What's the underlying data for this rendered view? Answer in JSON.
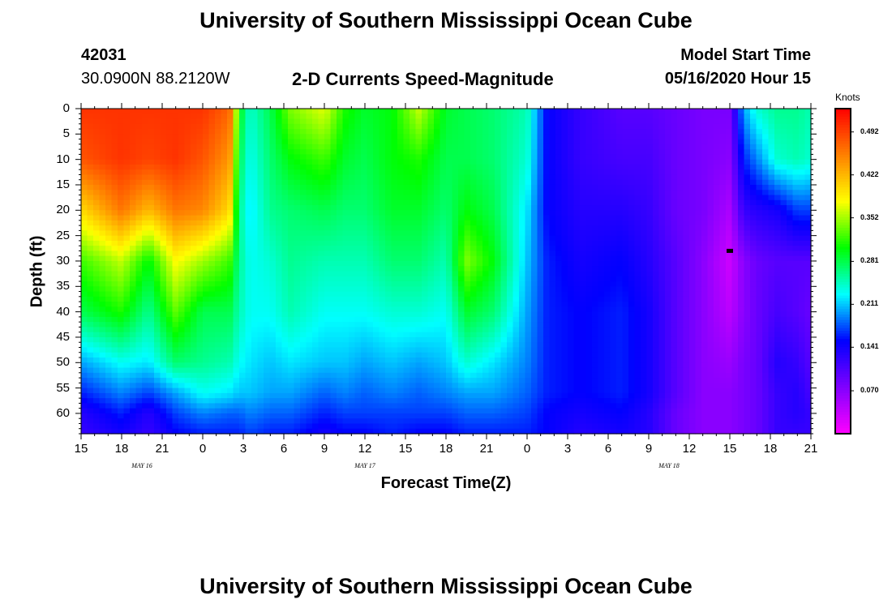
{
  "header": {
    "title": "University of Southern Mississippi Ocean Cube",
    "station_id": "42031",
    "location": "30.0900N 88.2120W",
    "subtitle": "2-D Currents Speed-Magnitude",
    "model_start_label": "Model Start Time",
    "model_start_value": "05/16/2020 Hour 15"
  },
  "footer": {
    "title": "University of Southern Mississippi Ocean Cube"
  },
  "chart_data": {
    "type": "heatmap",
    "title": "2-D Currents Speed-Magnitude",
    "xlabel": "Forecast Time(Z)",
    "ylabel": "Depth (ft)",
    "x_range_hours": [
      0,
      54
    ],
    "y_range_ft": [
      0,
      64
    ],
    "x_tick_labels": [
      "15",
      "18",
      "21",
      "0",
      "3",
      "6",
      "9",
      "12",
      "15",
      "18",
      "21",
      "0",
      "3",
      "6",
      "9",
      "12",
      "15",
      "18",
      "21"
    ],
    "y_tick_labels": [
      "0",
      "5",
      "10",
      "15",
      "20",
      "25",
      "30",
      "35",
      "40",
      "45",
      "50",
      "55",
      "60"
    ],
    "date_labels": [
      {
        "text": "MAY 16",
        "hour": 4.5
      },
      {
        "text": "MAY 17",
        "hour": 21
      },
      {
        "text": "MAY 18",
        "hour": 43.5
      }
    ],
    "colorbar": {
      "unit": "Knots",
      "tick_labels": [
        "0.492",
        "0.422",
        "0.352",
        "0.281",
        "0.211",
        "0.141",
        "0.070"
      ],
      "tick_values": [
        0.492,
        0.422,
        0.352,
        0.281,
        0.211,
        0.141,
        0.07
      ],
      "range": [
        0,
        0.53
      ],
      "colors": [
        "#ff00ff",
        "#8000ff",
        "#0000ff",
        "#00ffff",
        "#00ff00",
        "#ffff00",
        "#ff8000",
        "#ff0000"
      ]
    },
    "marker": {
      "hour": 48,
      "depth_ft": 28
    },
    "depths_ft": [
      0,
      10,
      20,
      30,
      40,
      50,
      56,
      60,
      64
    ],
    "columns": [
      {
        "hour": 0,
        "values": [
          0.5,
          0.48,
          0.4,
          0.32,
          0.28,
          0.2,
          0.16,
          0.13,
          0.12
        ]
      },
      {
        "hour": 3,
        "values": [
          0.5,
          0.5,
          0.46,
          0.36,
          0.31,
          0.23,
          0.19,
          0.16,
          0.14
        ]
      },
      {
        "hour": 5,
        "values": [
          0.5,
          0.49,
          0.42,
          0.3,
          0.26,
          0.22,
          0.17,
          0.13,
          0.12
        ]
      },
      {
        "hour": 7,
        "values": [
          0.5,
          0.5,
          0.46,
          0.38,
          0.33,
          0.27,
          0.2,
          0.17,
          0.15
        ]
      },
      {
        "hour": 9,
        "values": [
          0.5,
          0.48,
          0.45,
          0.35,
          0.28,
          0.26,
          0.23,
          0.19,
          0.16
        ]
      },
      {
        "hour": 11,
        "values": [
          0.47,
          0.44,
          0.4,
          0.32,
          0.28,
          0.25,
          0.22,
          0.18,
          0.16
        ]
      },
      {
        "hour": 11.7,
        "values": [
          0.3,
          0.28,
          0.26,
          0.26,
          0.25,
          0.23,
          0.21,
          0.18,
          0.16
        ]
      },
      {
        "hour": 12.5,
        "values": [
          0.24,
          0.23,
          0.22,
          0.23,
          0.23,
          0.22,
          0.21,
          0.19,
          0.17
        ]
      },
      {
        "hour": 14,
        "values": [
          0.28,
          0.27,
          0.26,
          0.24,
          0.23,
          0.21,
          0.2,
          0.18,
          0.16
        ]
      },
      {
        "hour": 15.5,
        "values": [
          0.34,
          0.3,
          0.27,
          0.26,
          0.25,
          0.22,
          0.2,
          0.18,
          0.16
        ]
      },
      {
        "hour": 18,
        "values": [
          0.37,
          0.32,
          0.28,
          0.25,
          0.23,
          0.21,
          0.18,
          0.16,
          0.14
        ]
      },
      {
        "hour": 19.5,
        "values": [
          0.31,
          0.29,
          0.27,
          0.25,
          0.23,
          0.21,
          0.19,
          0.17,
          0.15
        ]
      },
      {
        "hour": 21,
        "values": [
          0.29,
          0.28,
          0.27,
          0.25,
          0.23,
          0.2,
          0.18,
          0.17,
          0.15
        ]
      },
      {
        "hour": 23,
        "values": [
          0.3,
          0.3,
          0.29,
          0.27,
          0.24,
          0.21,
          0.19,
          0.17,
          0.16
        ]
      },
      {
        "hour": 25,
        "values": [
          0.36,
          0.31,
          0.29,
          0.27,
          0.24,
          0.2,
          0.18,
          0.17,
          0.15
        ]
      },
      {
        "hour": 27,
        "values": [
          0.29,
          0.28,
          0.27,
          0.25,
          0.23,
          0.21,
          0.19,
          0.17,
          0.15
        ]
      },
      {
        "hour": 28.5,
        "values": [
          0.28,
          0.28,
          0.3,
          0.34,
          0.29,
          0.24,
          0.2,
          0.18,
          0.16
        ]
      },
      {
        "hour": 30.5,
        "values": [
          0.27,
          0.27,
          0.28,
          0.3,
          0.27,
          0.22,
          0.2,
          0.18,
          0.16
        ]
      },
      {
        "hour": 33,
        "values": [
          0.25,
          0.24,
          0.22,
          0.21,
          0.2,
          0.19,
          0.18,
          0.17,
          0.16
        ]
      },
      {
        "hour": 34.5,
        "values": [
          0.15,
          0.15,
          0.15,
          0.16,
          0.16,
          0.16,
          0.16,
          0.15,
          0.15
        ]
      },
      {
        "hour": 37,
        "values": [
          0.12,
          0.12,
          0.13,
          0.14,
          0.15,
          0.15,
          0.15,
          0.14,
          0.13
        ]
      },
      {
        "hour": 40,
        "values": [
          0.1,
          0.11,
          0.13,
          0.15,
          0.16,
          0.16,
          0.16,
          0.15,
          0.14
        ]
      },
      {
        "hour": 42,
        "values": [
          0.1,
          0.11,
          0.12,
          0.13,
          0.14,
          0.14,
          0.14,
          0.13,
          0.13
        ]
      },
      {
        "hour": 44,
        "values": [
          0.09,
          0.09,
          0.09,
          0.1,
          0.1,
          0.1,
          0.1,
          0.09,
          0.09
        ]
      },
      {
        "hour": 46,
        "values": [
          0.08,
          0.08,
          0.08,
          0.07,
          0.07,
          0.07,
          0.07,
          0.07,
          0.07
        ]
      },
      {
        "hour": 48,
        "values": [
          0.08,
          0.07,
          0.05,
          0.03,
          0.04,
          0.06,
          0.07,
          0.07,
          0.07
        ]
      },
      {
        "hour": 49,
        "values": [
          0.2,
          0.16,
          0.12,
          0.07,
          0.07,
          0.08,
          0.08,
          0.08,
          0.08
        ]
      },
      {
        "hour": 50,
        "values": [
          0.24,
          0.19,
          0.13,
          0.09,
          0.09,
          0.09,
          0.09,
          0.09,
          0.09
        ]
      },
      {
        "hour": 51.5,
        "values": [
          0.26,
          0.24,
          0.14,
          0.1,
          0.11,
          0.13,
          0.12,
          0.12,
          0.12
        ]
      },
      {
        "hour": 53,
        "values": [
          0.26,
          0.25,
          0.17,
          0.1,
          0.1,
          0.12,
          0.13,
          0.13,
          0.12
        ]
      },
      {
        "hour": 54,
        "values": [
          0.25,
          0.24,
          0.17,
          0.1,
          0.09,
          0.1,
          0.11,
          0.12,
          0.12
        ]
      }
    ]
  }
}
